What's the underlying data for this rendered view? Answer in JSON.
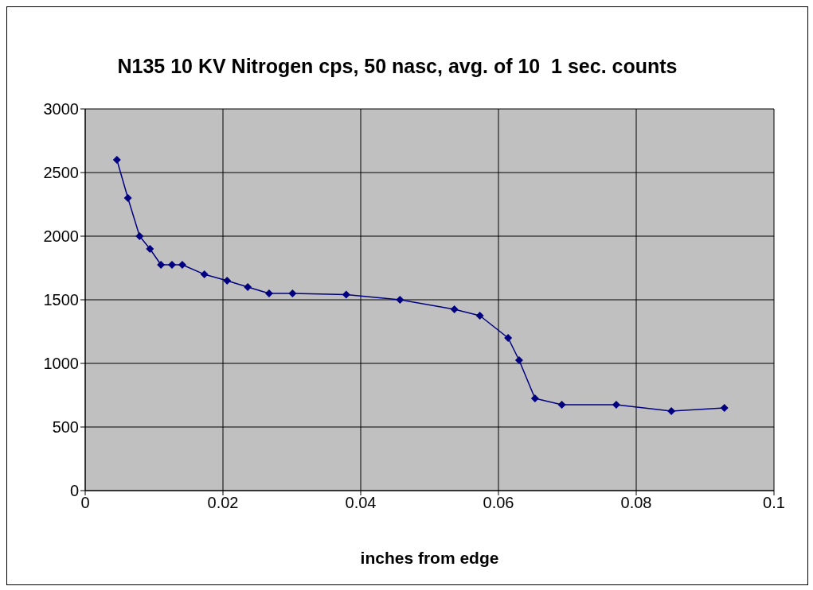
{
  "chart_data": {
    "type": "line",
    "title": "N135 10 KV Nitrogen cps, 50 nasc, avg. of 10  1 sec. counts",
    "xlabel": "inches from edge",
    "x": [
      0.0046,
      0.0062,
      0.0079,
      0.0094,
      0.011,
      0.0126,
      0.0141,
      0.0173,
      0.0206,
      0.0236,
      0.0267,
      0.0301,
      0.0379,
      0.0457,
      0.0536,
      0.0573,
      0.0614,
      0.063,
      0.0653,
      0.0692,
      0.0771,
      0.0851,
      0.0928
    ],
    "series": [
      {
        "color": "#000080",
        "values": [
          2600,
          2300,
          2000,
          1900,
          1775,
          1775,
          1775,
          1700,
          1650,
          1600,
          1550,
          1550,
          1540,
          1500,
          1425,
          1375,
          1200,
          1025,
          725,
          675,
          675,
          625,
          650
        ]
      }
    ],
    "xlim": [
      0,
      0.1
    ],
    "xticks": [
      0,
      0.02,
      0.04,
      0.06,
      0.08,
      0.1
    ],
    "ylim": [
      0,
      3000
    ],
    "yticks": [
      0,
      500,
      1000,
      1500,
      2000,
      2500,
      3000
    ],
    "grid": true,
    "marker": "diamond",
    "line_style": "solid"
  }
}
